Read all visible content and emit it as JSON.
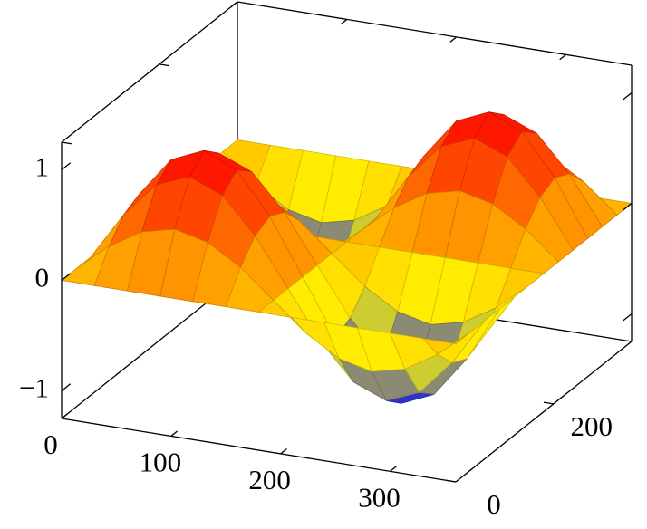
{
  "chart_data": {
    "type": "surface",
    "x": [
      0,
      30,
      60,
      90,
      120,
      150,
      180,
      210,
      240,
      270,
      300,
      330,
      360
    ],
    "y": [
      0,
      30,
      60,
      90,
      120,
      150,
      180,
      210,
      240,
      270,
      300,
      330,
      360
    ],
    "z": [
      [
        0,
        0,
        0,
        0,
        0,
        0,
        0,
        0,
        0,
        0,
        0,
        0,
        0
      ],
      [
        0,
        0.25,
        0.43,
        0.5,
        0.43,
        0.25,
        0,
        -0.25,
        -0.43,
        -0.5,
        -0.43,
        -0.25,
        0
      ],
      [
        0,
        0.43,
        0.75,
        0.87,
        0.75,
        0.43,
        0,
        -0.43,
        -0.75,
        -0.87,
        -0.75,
        -0.43,
        0
      ],
      [
        0,
        0.5,
        0.87,
        1,
        0.87,
        0.5,
        0,
        -0.5,
        -0.87,
        -1,
        -0.87,
        -0.5,
        0
      ],
      [
        0,
        0.43,
        0.75,
        0.87,
        0.75,
        0.43,
        0,
        -0.43,
        -0.75,
        -0.87,
        -0.75,
        -0.43,
        0
      ],
      [
        0,
        0.25,
        0.43,
        0.5,
        0.43,
        0.25,
        0,
        -0.25,
        -0.43,
        -0.5,
        -0.43,
        -0.25,
        0
      ],
      [
        0,
        0,
        0,
        0,
        0,
        0,
        0,
        0,
        0,
        0,
        0,
        0,
        0
      ],
      [
        0,
        -0.25,
        -0.43,
        -0.5,
        -0.43,
        -0.25,
        0,
        0.25,
        0.43,
        0.5,
        0.43,
        0.25,
        0
      ],
      [
        0,
        -0.43,
        -0.75,
        -0.87,
        -0.75,
        -0.43,
        0,
        0.43,
        0.75,
        0.87,
        0.75,
        0.43,
        0
      ],
      [
        0,
        -0.5,
        -0.87,
        -1,
        -0.87,
        -0.5,
        0,
        0.5,
        0.87,
        1,
        0.87,
        0.5,
        0
      ],
      [
        0,
        -0.43,
        -0.75,
        -0.87,
        -0.75,
        -0.43,
        0,
        0.43,
        0.75,
        0.87,
        0.75,
        0.43,
        0
      ],
      [
        0,
        -0.25,
        -0.43,
        -0.5,
        -0.43,
        -0.25,
        0,
        0.25,
        0.43,
        0.5,
        0.43,
        0.25,
        0
      ],
      [
        0,
        0,
        0,
        0,
        0,
        0,
        0,
        0,
        0,
        0,
        0,
        0,
        0
      ]
    ],
    "xlim": [
      0,
      360
    ],
    "ylim": [
      0,
      360
    ],
    "zlim": [
      -1.25,
      1.25
    ],
    "xticks": [
      0,
      100,
      200,
      300
    ],
    "yticks": [
      0,
      200
    ],
    "zticks": [
      {
        "value": -1,
        "label": "−1"
      },
      0,
      1
    ],
    "colormap": [
      "#0000ff",
      "#ffff00",
      "#ff8000",
      "#ff0000"
    ]
  }
}
